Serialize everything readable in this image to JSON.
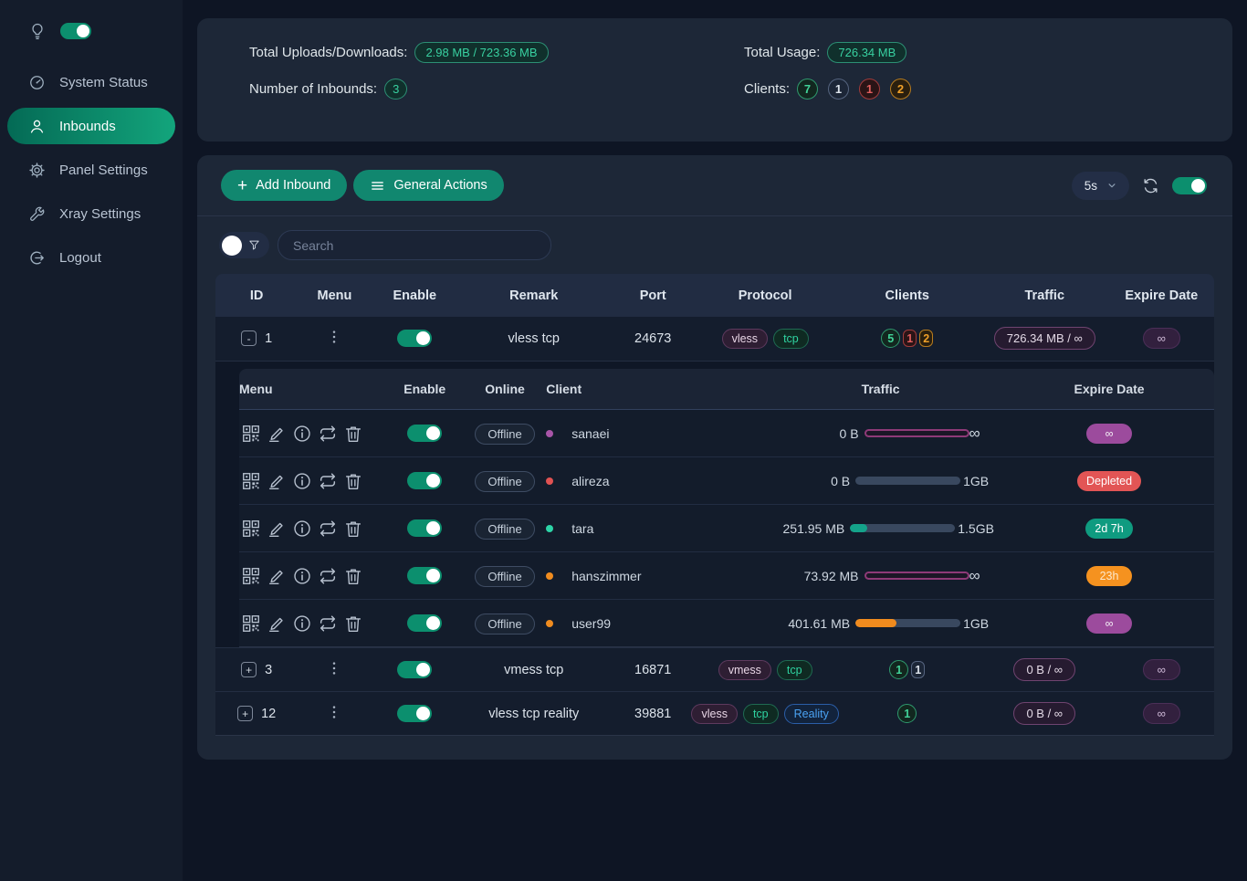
{
  "sidebar": {
    "items": [
      {
        "label": "System Status"
      },
      {
        "label": "Inbounds"
      },
      {
        "label": "Panel Settings"
      },
      {
        "label": "Xray Settings"
      },
      {
        "label": "Logout"
      }
    ]
  },
  "stats": {
    "uploads_label": "Total Uploads/Downloads:",
    "uploads_value": "2.98 MB / 723.36 MB",
    "inbounds_label": "Number of Inbounds:",
    "inbounds_value": "3",
    "usage_label": "Total Usage:",
    "usage_value": "726.34 MB",
    "clients_label": "Clients:",
    "client_counts": [
      {
        "value": "7",
        "color": "green"
      },
      {
        "value": "1",
        "color": "gray"
      },
      {
        "value": "1",
        "color": "red"
      },
      {
        "value": "2",
        "color": "orange"
      }
    ]
  },
  "toolbar": {
    "add_inbound_label": "Add Inbound",
    "general_actions_label": "General Actions",
    "refresh_interval": "5s"
  },
  "search": {
    "placeholder": "Search"
  },
  "table": {
    "headers": [
      "ID",
      "Menu",
      "Enable",
      "Remark",
      "Port",
      "Protocol",
      "Clients",
      "Traffic",
      "Expire Date"
    ],
    "inbounds": [
      {
        "id": "1",
        "expand_icon": "-",
        "remark": "vless tcp",
        "port": "24673",
        "protocols": [
          "vless",
          "tcp"
        ],
        "counts": [
          {
            "value": "5",
            "color": "green"
          },
          {
            "value": "1",
            "color": "red"
          },
          {
            "value": "2",
            "color": "orange"
          }
        ],
        "traffic": "726.34 MB / ∞",
        "expire": "∞"
      },
      {
        "id": "3",
        "expand_icon": "+",
        "remark": "vmess tcp",
        "port": "16871",
        "protocols": [
          "vmess",
          "tcp"
        ],
        "counts": [
          {
            "value": "1",
            "color": "green"
          },
          {
            "value": "1",
            "color": "gray"
          }
        ],
        "traffic": "0 B / ∞",
        "expire": "∞"
      },
      {
        "id": "12",
        "expand_icon": "+",
        "remark": "vless tcp reality",
        "port": "39881",
        "protocols": [
          "vless",
          "tcp",
          "Reality"
        ],
        "counts": [
          {
            "value": "1",
            "color": "green"
          }
        ],
        "traffic": "0 B / ∞",
        "expire": "∞"
      }
    ]
  },
  "client_table": {
    "headers": [
      "Menu",
      "Enable",
      "Online",
      "Client",
      "Traffic",
      "Expire Date"
    ],
    "rows": [
      {
        "status": "Offline",
        "name": "sanaei",
        "dot": "purple",
        "used": "0 B",
        "limit": "∞",
        "bar": "infinite",
        "pct": 0,
        "fill": "none",
        "expire": "∞",
        "expire_color": "purple"
      },
      {
        "status": "Offline",
        "name": "alireza",
        "dot": "red",
        "used": "0 B",
        "limit": "1GB",
        "bar": "normal",
        "pct": 0,
        "fill": "none",
        "expire": "Depleted",
        "expire_color": "red"
      },
      {
        "status": "Offline",
        "name": "tara",
        "dot": "teal",
        "used": "251.95 MB",
        "limit": "1.5GB",
        "bar": "normal",
        "pct": 16,
        "fill": "teal",
        "expire": "2d 7h",
        "expire_color": "teal"
      },
      {
        "status": "Offline",
        "name": "hanszimmer",
        "dot": "orange",
        "used": "73.92 MB",
        "limit": "∞",
        "bar": "infinite",
        "pct": 0,
        "fill": "none",
        "expire": "23h",
        "expire_color": "orange"
      },
      {
        "status": "Offline",
        "name": "user99",
        "dot": "orange",
        "used": "401.61 MB",
        "limit": "1GB",
        "bar": "normal",
        "pct": 39,
        "fill": "orange",
        "expire": "∞",
        "expire_color": "purple"
      }
    ]
  }
}
